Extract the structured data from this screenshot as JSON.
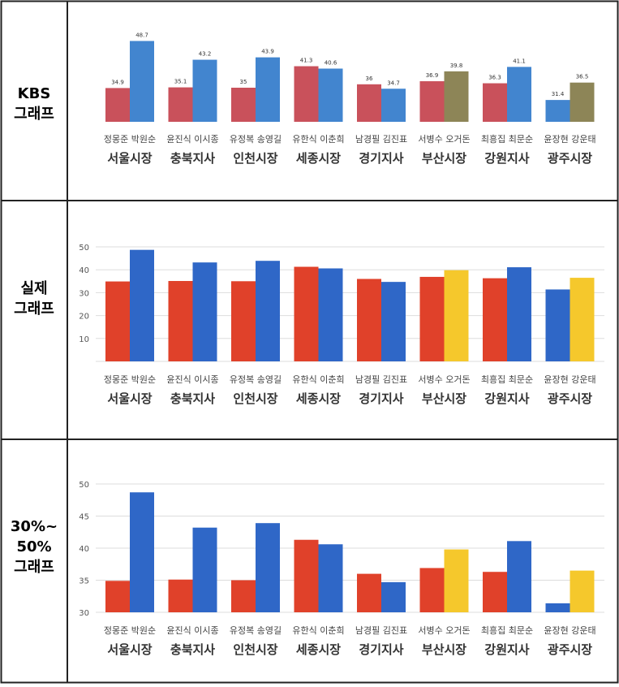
{
  "colors": {
    "red": "#e0412a",
    "blue": "#2f67c7",
    "yellow": "#f5c82c",
    "kbs_red": "#c9515b",
    "kbs_blue": "#4285cf",
    "kbs_olive": "#8d8557",
    "border": "#222222",
    "grid": "#dddddd",
    "tick_text": "#555555"
  },
  "panels": [
    {
      "label_lines": [
        "KBS",
        "그래프"
      ]
    },
    {
      "label_lines": [
        "실제",
        "그래프"
      ]
    },
    {
      "label_lines": [
        "30%~",
        "50%",
        "그래프"
      ]
    }
  ],
  "chart_data": [
    {
      "type": "bar",
      "title": "",
      "categories": [
        {
          "candidates": "정몽준 박원순",
          "region": "서울시장"
        },
        {
          "candidates": "윤진식 이시종",
          "region": "충북지사"
        },
        {
          "candidates": "유정복 송영길",
          "region": "인천시장"
        },
        {
          "candidates": "유한식 이춘희",
          "region": "세종시장"
        },
        {
          "candidates": "남경필 김진표",
          "region": "경기지사"
        },
        {
          "candidates": "서병수 오거돈",
          "region": "부산시장"
        },
        {
          "candidates": "최흥집 최문순",
          "region": "강원지사"
        },
        {
          "candidates": "윤장현 강운태",
          "region": "광주시장"
        }
      ],
      "series": [
        {
          "values": [
            34.9,
            35.1,
            35,
            41.3,
            36,
            36.9,
            36.3,
            31.4
          ],
          "colors": [
            "kbs_red",
            "kbs_red",
            "kbs_red",
            "kbs_red",
            "kbs_red",
            "kbs_red",
            "kbs_red",
            "kbs_blue"
          ],
          "labels": [
            "34.9",
            "35.1",
            "35",
            "41.3",
            "36",
            "36.9",
            "36.3",
            "31.4"
          ]
        },
        {
          "values": [
            48.7,
            43.2,
            43.9,
            40.6,
            34.7,
            39.8,
            41.1,
            36.5
          ],
          "colors": [
            "kbs_blue",
            "kbs_blue",
            "kbs_blue",
            "kbs_blue",
            "kbs_blue",
            "kbs_olive",
            "kbs_blue",
            "kbs_olive"
          ],
          "labels": [
            "48.7",
            "43.2",
            "43.9",
            "40.6",
            "34.7",
            "39.8",
            "41.1",
            "36.5"
          ]
        }
      ],
      "data_labels": true,
      "y_axis_visible": false,
      "ylim": [
        25,
        50
      ],
      "grid": false
    },
    {
      "type": "bar",
      "title": "",
      "categories": [
        {
          "candidates": "정몽준 박원순",
          "region": "서울시장"
        },
        {
          "candidates": "윤진식 이시종",
          "region": "충북지사"
        },
        {
          "candidates": "유정복 송영길",
          "region": "인천시장"
        },
        {
          "candidates": "유한식 이춘희",
          "region": "세종시장"
        },
        {
          "candidates": "남경필 김진표",
          "region": "경기지사"
        },
        {
          "candidates": "서병수 오거돈",
          "region": "부산시장"
        },
        {
          "candidates": "최흥집 최문순",
          "region": "강원지사"
        },
        {
          "candidates": "윤장현 강운태",
          "region": "광주시장"
        }
      ],
      "series": [
        {
          "values": [
            34.9,
            35.1,
            35,
            41.3,
            36,
            36.9,
            36.3,
            31.4
          ],
          "colors": [
            "red",
            "red",
            "red",
            "red",
            "red",
            "red",
            "red",
            "blue"
          ]
        },
        {
          "values": [
            48.7,
            43.2,
            43.9,
            40.6,
            34.7,
            39.8,
            41.1,
            36.5
          ],
          "colors": [
            "blue",
            "blue",
            "blue",
            "blue",
            "blue",
            "yellow",
            "blue",
            "yellow"
          ]
        }
      ],
      "data_labels": false,
      "y_axis_visible": true,
      "yticks": [
        "10",
        "20",
        "30",
        "40",
        "50"
      ],
      "ylim": [
        0,
        50
      ],
      "grid": true
    },
    {
      "type": "bar",
      "title": "",
      "categories": [
        {
          "candidates": "정몽준 박원순",
          "region": "서울시장"
        },
        {
          "candidates": "윤진식 이시종",
          "region": "충북지사"
        },
        {
          "candidates": "유정복 송영길",
          "region": "인천시장"
        },
        {
          "candidates": "유한식 이춘희",
          "region": "세종시장"
        },
        {
          "candidates": "남경필 김진표",
          "region": "경기지사"
        },
        {
          "candidates": "서병수 오거돈",
          "region": "부산시장"
        },
        {
          "candidates": "최흥집 최문순",
          "region": "강원지사"
        },
        {
          "candidates": "윤장현 강운태",
          "region": "광주시장"
        }
      ],
      "series": [
        {
          "values": [
            34.9,
            35.1,
            35,
            41.3,
            36,
            36.9,
            36.3,
            31.4
          ],
          "colors": [
            "red",
            "red",
            "red",
            "red",
            "red",
            "red",
            "red",
            "blue"
          ]
        },
        {
          "values": [
            48.7,
            43.2,
            43.9,
            40.6,
            34.7,
            39.8,
            41.1,
            36.5
          ],
          "colors": [
            "blue",
            "blue",
            "blue",
            "blue",
            "blue",
            "yellow",
            "blue",
            "yellow"
          ]
        }
      ],
      "data_labels": false,
      "y_axis_visible": true,
      "yticks": [
        "30",
        "35",
        "40",
        "45",
        "50"
      ],
      "ylim": [
        30,
        50
      ],
      "grid": true
    }
  ]
}
